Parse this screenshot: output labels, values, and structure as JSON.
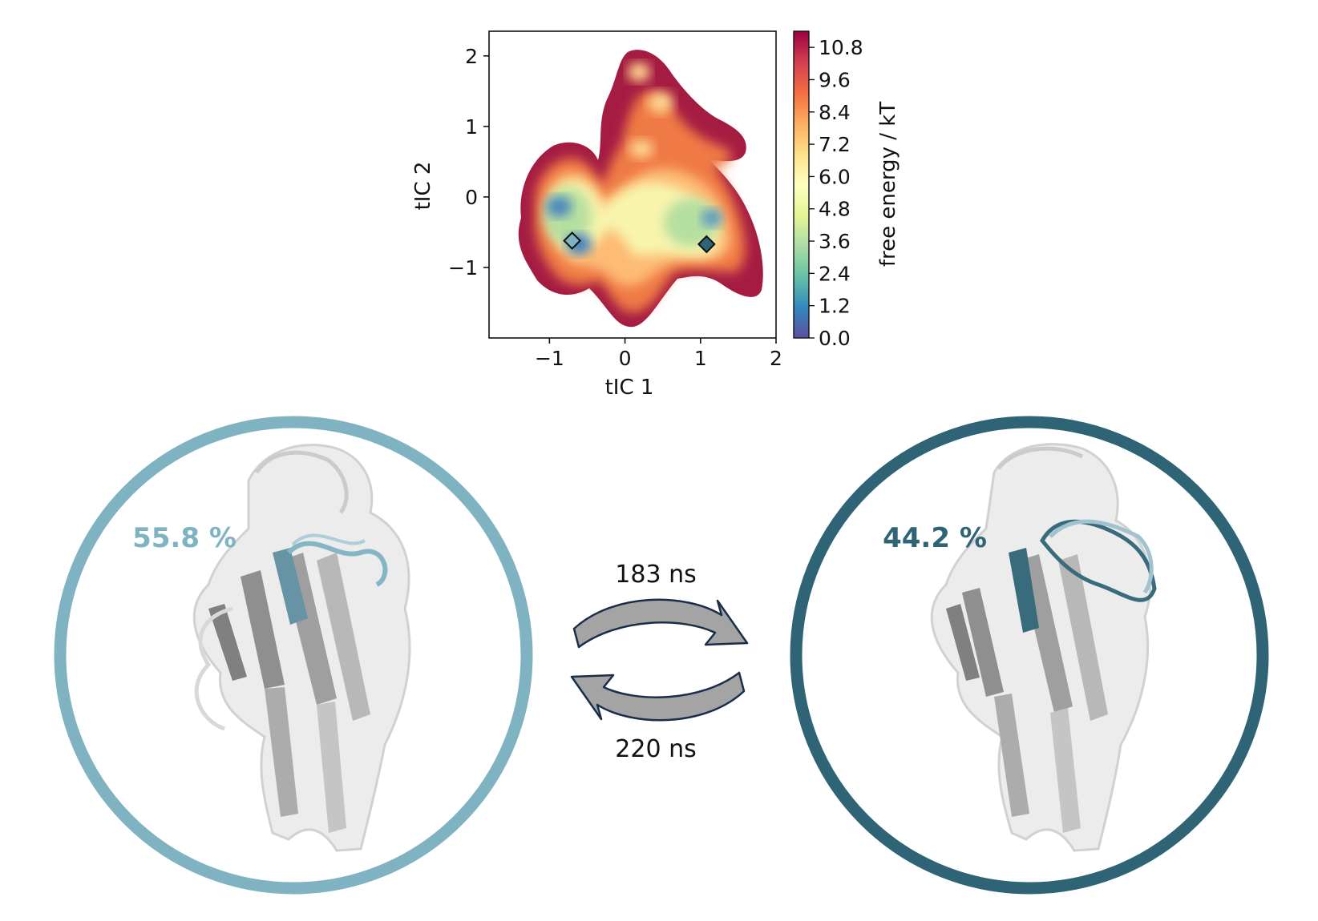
{
  "chart_data": {
    "type": "heatmap",
    "xlabel": "tIC 1",
    "ylabel": "tIC 2",
    "xlim": [
      -1.8,
      2.0
    ],
    "ylim": [
      -2.0,
      2.35
    ],
    "x_ticks": [
      {
        "value": -1,
        "label": "−1"
      },
      {
        "value": 0,
        "label": "0"
      },
      {
        "value": 1,
        "label": "1"
      },
      {
        "value": 2,
        "label": "2"
      }
    ],
    "y_ticks": [
      {
        "value": 2,
        "label": "2"
      },
      {
        "value": 1,
        "label": "1"
      },
      {
        "value": 0,
        "label": "0"
      },
      {
        "value": -1,
        "label": "−1"
      }
    ],
    "colorbar": {
      "label": "free energy / kT",
      "range": [
        0.0,
        11.4
      ],
      "colormap": "Spectral_r",
      "ticks": [
        {
          "value": 10.8,
          "label": "10.8"
        },
        {
          "value": 9.6,
          "label": "9.6"
        },
        {
          "value": 8.4,
          "label": "8.4"
        },
        {
          "value": 7.2,
          "label": "7.2"
        },
        {
          "value": 6.0,
          "label": "6.0"
        },
        {
          "value": 4.8,
          "label": "4.8"
        },
        {
          "value": 3.6,
          "label": "3.6"
        },
        {
          "value": 2.4,
          "label": "2.4"
        },
        {
          "value": 1.2,
          "label": "1.2"
        },
        {
          "value": 0.0,
          "label": "0.0"
        }
      ]
    },
    "markers": [
      {
        "name": "state-1",
        "x": -0.7,
        "y": -0.62,
        "color": "#7fb3c2"
      },
      {
        "name": "state-2",
        "x": 1.08,
        "y": -0.67,
        "color": "#2e6475"
      }
    ]
  },
  "states": [
    {
      "name": "state-1",
      "population": "55.8 %",
      "color": "#7fb3c2"
    },
    {
      "name": "state-2",
      "population": "44.2 %",
      "color": "#2e6475"
    }
  ],
  "transitions": {
    "forward_label": "183 ns",
    "backward_label": "220 ns",
    "arrow_fill": "#a4a4a4",
    "arrow_stroke": "#1a2e4a"
  }
}
